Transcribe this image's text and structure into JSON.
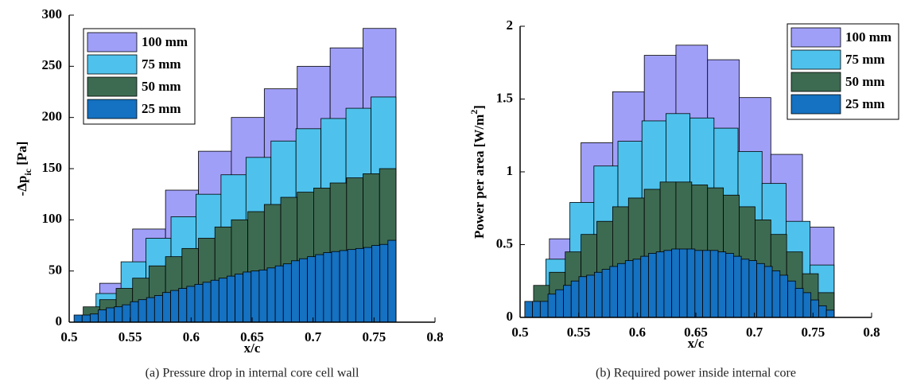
{
  "chart_data": [
    {
      "type": "histogram",
      "caption": "(a) Pressure drop in internal core cell wall",
      "xlabel": "x/c",
      "ylabel": {
        "main": "-Δp",
        "sub": "ic",
        "end": " [Pa]"
      },
      "xlim": [
        0.5,
        0.8
      ],
      "xticks": [
        0.5,
        0.55,
        0.6,
        0.65,
        0.7,
        0.75,
        0.8
      ],
      "ylim": [
        0,
        300
      ],
      "yticks": [
        0,
        50,
        100,
        150,
        200,
        250,
        300
      ],
      "legend": "upper left",
      "series": [
        {
          "name": "100 mm",
          "color": "#a09ff8",
          "bins": [
            0.525,
            0.552,
            0.579,
            0.606,
            0.633,
            0.66,
            0.687,
            0.714,
            0.741,
            0.768
          ],
          "values": [
            38,
            91,
            129,
            167,
            200,
            228,
            250,
            268,
            287
          ]
        },
        {
          "name": "75 mm",
          "color": "#4ec2ec",
          "bins": [
            0.522,
            0.5425,
            0.563,
            0.5835,
            0.604,
            0.6245,
            0.645,
            0.6655,
            0.686,
            0.7065,
            0.727,
            0.7475,
            0.768
          ],
          "values": [
            28,
            59,
            82,
            103,
            125,
            144,
            161,
            177,
            189,
            199,
            209,
            220
          ]
        },
        {
          "name": "50 mm",
          "color": "#3d6b52",
          "bins": [
            0.5115,
            0.525,
            0.5385,
            0.552,
            0.5655,
            0.579,
            0.5925,
            0.606,
            0.6195,
            0.633,
            0.6465,
            0.66,
            0.6735,
            0.687,
            0.7005,
            0.714,
            0.7275,
            0.741,
            0.7545,
            0.768
          ],
          "values": [
            15,
            22,
            33,
            43,
            55,
            64,
            72,
            82,
            93,
            100,
            108,
            115,
            122,
            127,
            131,
            136,
            141,
            145,
            150
          ]
        },
        {
          "name": "25 mm",
          "color": "#1571c1",
          "bins": [
            0.504,
            0.5106,
            0.5172,
            0.5238,
            0.5304,
            0.537,
            0.5436,
            0.5502,
            0.5568,
            0.5634,
            0.57,
            0.5766,
            0.5832,
            0.5898,
            0.5964,
            0.603,
            0.6096,
            0.6162,
            0.6228,
            0.6294,
            0.636,
            0.6426,
            0.6492,
            0.6558,
            0.6624,
            0.669,
            0.6756,
            0.6822,
            0.6888,
            0.6954,
            0.702,
            0.7086,
            0.7152,
            0.7218,
            0.7284,
            0.735,
            0.7416,
            0.7482,
            0.7548,
            0.7614,
            0.768
          ],
          "values": [
            7,
            7,
            8,
            12,
            14,
            15,
            17,
            20,
            22,
            24,
            26,
            29,
            31,
            33,
            35,
            37,
            39,
            41,
            43,
            45,
            47,
            49,
            50,
            51,
            53,
            55,
            57,
            60,
            62,
            64,
            66,
            68,
            69,
            70,
            71,
            72,
            73,
            75,
            76,
            80
          ]
        }
      ]
    },
    {
      "type": "histogram",
      "caption": "(b) Required power inside internal core",
      "xlabel": "x/c",
      "ylabel": {
        "main": "Power per area [W/m",
        "sup": "2",
        "end": "]"
      },
      "xlim": [
        0.5,
        0.8
      ],
      "xticks": [
        0.5,
        0.55,
        0.6,
        0.65,
        0.7,
        0.75,
        0.8
      ],
      "ylim": [
        0,
        2
      ],
      "yticks": [
        0,
        0.5,
        1,
        1.5,
        2
      ],
      "legend": "upper right",
      "series": [
        {
          "name": "100 mm",
          "color": "#a09ff8",
          "bins": [
            0.525,
            0.552,
            0.579,
            0.606,
            0.633,
            0.66,
            0.687,
            0.714,
            0.741,
            0.768
          ],
          "values": [
            0.54,
            1.2,
            1.55,
            1.8,
            1.87,
            1.77,
            1.51,
            1.12,
            0.62
          ]
        },
        {
          "name": "75 mm",
          "color": "#4ec2ec",
          "bins": [
            0.522,
            0.5425,
            0.563,
            0.5835,
            0.604,
            0.6245,
            0.645,
            0.6655,
            0.686,
            0.7065,
            0.727,
            0.7475,
            0.768
          ],
          "values": [
            0.4,
            0.79,
            1.04,
            1.21,
            1.35,
            1.4,
            1.37,
            1.3,
            1.14,
            0.92,
            0.66,
            0.36
          ]
        },
        {
          "name": "50 mm",
          "color": "#3d6b52",
          "bins": [
            0.5115,
            0.525,
            0.5385,
            0.552,
            0.5655,
            0.579,
            0.5925,
            0.606,
            0.6195,
            0.633,
            0.6465,
            0.66,
            0.6735,
            0.687,
            0.7005,
            0.714,
            0.7275,
            0.741,
            0.7545,
            0.768
          ],
          "values": [
            0.22,
            0.31,
            0.45,
            0.57,
            0.66,
            0.76,
            0.82,
            0.88,
            0.93,
            0.93,
            0.91,
            0.89,
            0.84,
            0.76,
            0.67,
            0.57,
            0.45,
            0.3,
            0.17
          ]
        },
        {
          "name": "25 mm",
          "color": "#1571c1",
          "bins": [
            0.504,
            0.5106,
            0.5172,
            0.5238,
            0.5304,
            0.537,
            0.5436,
            0.5502,
            0.5568,
            0.5634,
            0.57,
            0.5766,
            0.5832,
            0.5898,
            0.5964,
            0.603,
            0.6096,
            0.6162,
            0.6228,
            0.6294,
            0.636,
            0.6426,
            0.6492,
            0.6558,
            0.6624,
            0.669,
            0.6756,
            0.6822,
            0.6888,
            0.6954,
            0.702,
            0.7086,
            0.7152,
            0.7218,
            0.7284,
            0.735,
            0.7416,
            0.7482,
            0.7548,
            0.7614,
            0.768
          ],
          "values": [
            0.11,
            0.11,
            0.11,
            0.16,
            0.19,
            0.22,
            0.25,
            0.28,
            0.29,
            0.31,
            0.33,
            0.35,
            0.37,
            0.39,
            0.4,
            0.42,
            0.44,
            0.45,
            0.46,
            0.47,
            0.47,
            0.47,
            0.46,
            0.46,
            0.46,
            0.45,
            0.44,
            0.42,
            0.4,
            0.39,
            0.37,
            0.35,
            0.32,
            0.29,
            0.25,
            0.2,
            0.17,
            0.12,
            0.08,
            0.05
          ]
        }
      ]
    }
  ]
}
